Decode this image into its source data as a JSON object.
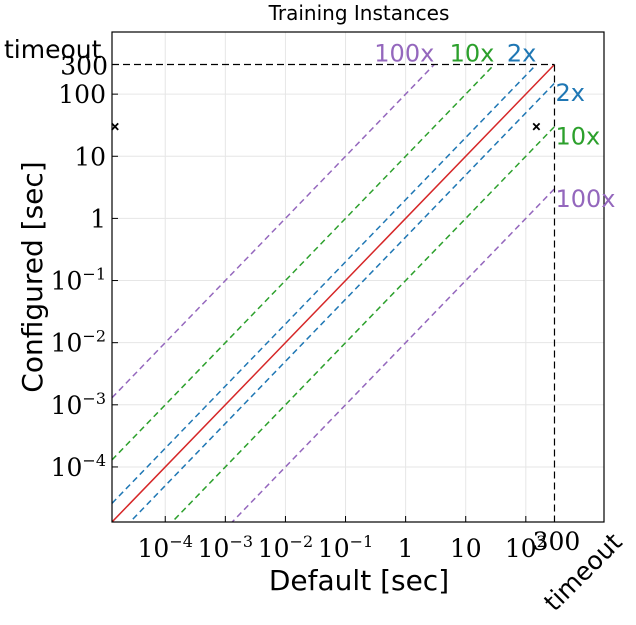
{
  "chart_data": {
    "type": "scatter",
    "title": "Training Instances",
    "xlabel": "Default [sec]",
    "ylabel": "Configured [sec]",
    "xscale": "log",
    "yscale": "log",
    "xlim": [
      1.3e-05,
      2000
    ],
    "ylim": [
      1.3e-05,
      1000
    ],
    "grid": true,
    "timeout_value": 300,
    "timeout_label": "timeout",
    "timeout_tick_label": "300",
    "x_ticks": [
      {
        "value": 0.0001,
        "base": "10",
        "exp": "−4"
      },
      {
        "value": 0.001,
        "base": "10",
        "exp": "−3"
      },
      {
        "value": 0.01,
        "base": "10",
        "exp": "−2"
      },
      {
        "value": 0.1,
        "base": "10",
        "exp": "−1"
      },
      {
        "value": 1,
        "base": "1",
        "exp": ""
      },
      {
        "value": 10,
        "base": "10",
        "exp": ""
      },
      {
        "value": 100,
        "base": "10",
        "exp": "2"
      }
    ],
    "y_ticks": [
      {
        "value": 0.0001,
        "base": "10",
        "exp": "−4"
      },
      {
        "value": 0.001,
        "base": "10",
        "exp": "−3"
      },
      {
        "value": 0.01,
        "base": "10",
        "exp": "−2"
      },
      {
        "value": 0.1,
        "base": "10",
        "exp": "−1"
      },
      {
        "value": 1,
        "base": "1",
        "exp": ""
      },
      {
        "value": 10,
        "base": "10",
        "exp": ""
      },
      {
        "value": 100,
        "base": "100",
        "exp": ""
      }
    ],
    "reference_lines": [
      {
        "factor": 1,
        "color": "#d62728",
        "style": "solid"
      },
      {
        "factor": 2,
        "label": "2x",
        "color": "#1f77b4",
        "style": "dashed"
      },
      {
        "factor": 10,
        "label": "10x",
        "color": "#2ca02c",
        "style": "dashed"
      },
      {
        "factor": 100,
        "label": "100x",
        "color": "#9467bd",
        "style": "dashed"
      }
    ],
    "points": [
      {
        "x": 1.25e-05,
        "y": 30
      },
      {
        "x": 150,
        "y": 30
      }
    ]
  }
}
